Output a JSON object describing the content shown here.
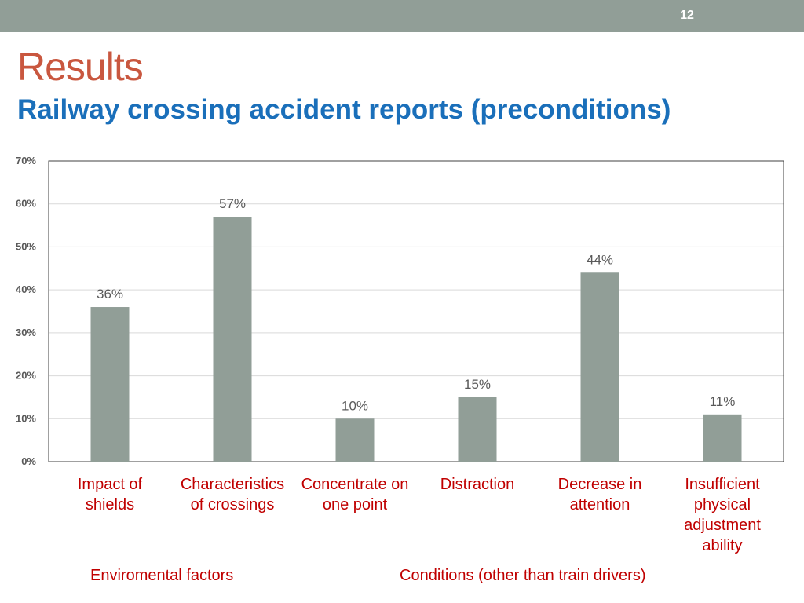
{
  "slide": {
    "number": "12",
    "title": "Results",
    "subtitle": "Railway crossing accident reports (preconditions)"
  },
  "colors": {
    "band": "#919e97",
    "title": "#c9573f",
    "subtitle": "#1a6fba",
    "bar": "#919e97",
    "category_label": "#c00000",
    "grid": "#d9d9d9"
  },
  "chart_data": {
    "type": "bar",
    "categories": [
      [
        "Impact of",
        "shields"
      ],
      [
        "Characteristics",
        "of crossings"
      ],
      [
        "Concentrate on",
        "one point"
      ],
      [
        "Distraction"
      ],
      [
        "Decrease in",
        "attention"
      ],
      [
        "Insufficient",
        "physical",
        "adjustment",
        "ability"
      ]
    ],
    "values": [
      36,
      57,
      10,
      15,
      44,
      11
    ],
    "data_labels": [
      "36%",
      "57%",
      "10%",
      "15%",
      "44%",
      "11%"
    ],
    "ylim": [
      0,
      70
    ],
    "yticks": [
      0,
      10,
      20,
      30,
      40,
      50,
      60,
      70
    ],
    "ytick_labels": [
      "0%",
      "10%",
      "20%",
      "30%",
      "40%",
      "50%",
      "60%",
      "70%"
    ],
    "grid": true,
    "groups": [
      {
        "label": "Enviromental factors"
      },
      {
        "label": "Conditions (other than train drivers)"
      }
    ]
  }
}
